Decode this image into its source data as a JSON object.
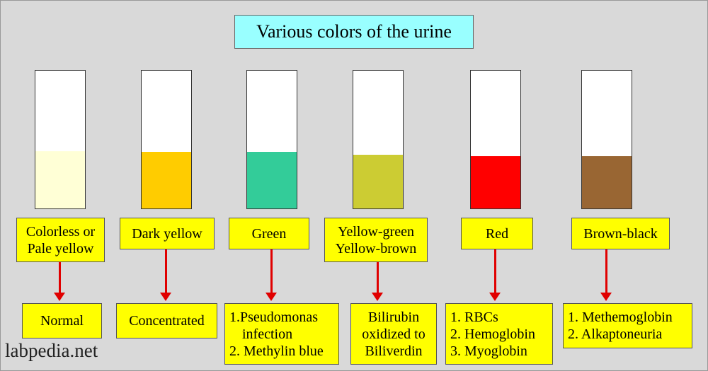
{
  "title": "Various colors of the urine",
  "tubes": [
    {
      "color": "#ffffd6",
      "label": [
        "Colorless or",
        "Pale yellow"
      ],
      "cause": [
        "Normal"
      ]
    },
    {
      "color": "#ffcc00",
      "label": [
        "Dark yellow"
      ],
      "cause": [
        "Concentrated"
      ]
    },
    {
      "color": "#33cc99",
      "label": [
        "Green"
      ],
      "cause": [
        "1.Pseudomonas",
        "infection",
        "2. Methylin blue"
      ]
    },
    {
      "color": "#cccc33",
      "label": [
        "Yellow-green",
        "Yellow-brown"
      ],
      "cause": [
        "Bilirubin",
        "oxidized to",
        "Biliverdin"
      ]
    },
    {
      "color": "#ff0000",
      "label": [
        "Red"
      ],
      "cause": [
        "1. RBCs",
        "2. Hemoglobin",
        "3. Myoglobin"
      ]
    },
    {
      "color": "#996633",
      "label": [
        "Brown-black"
      ],
      "cause": [
        "1. Methemoglobin",
        "2. Alkaptoneuria"
      ]
    }
  ],
  "watermark": "labpedia.net"
}
